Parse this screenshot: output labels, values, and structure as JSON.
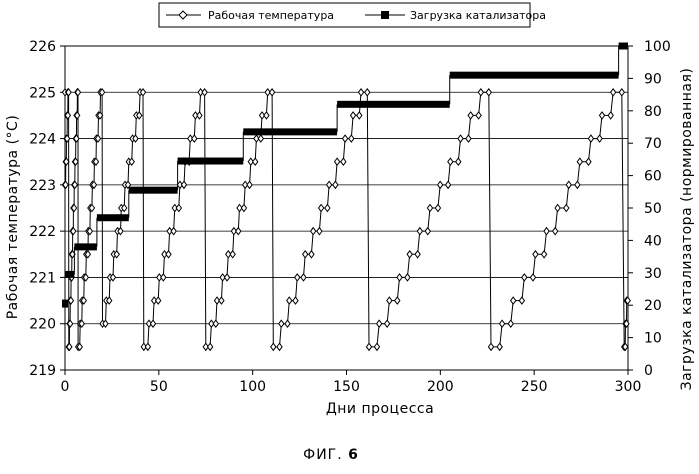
{
  "chart_data": {
    "type": "line",
    "x_label": "Дни процесса",
    "y_left_label": "Рабочая   температура   (°C)",
    "y_right_label": "Загрузка   катализатора   (нормированная)",
    "caption_prefix": "ФИГ. ",
    "caption_number": "6",
    "x_range": [
      0,
      300
    ],
    "y_left_range": [
      219,
      226
    ],
    "y_right_range": [
      0,
      100
    ],
    "x_ticks": [
      "0",
      "50",
      "100",
      "150",
      "200",
      "250",
      "300"
    ],
    "y_left_ticks": [
      "219",
      "220",
      "221",
      "222",
      "223",
      "224",
      "225",
      "226"
    ],
    "y_right_ticks": [
      "0",
      "10",
      "20",
      "30",
      "40",
      "50",
      "60",
      "70",
      "80",
      "90",
      "100"
    ],
    "grid": "horizontal",
    "legend_position": "top",
    "series": [
      {
        "name": "Рабочая температура",
        "axis": "left",
        "marker": "diamond",
        "cycles": [
          {
            "start": 0,
            "end": 2,
            "min": 223,
            "max": 225
          },
          {
            "start": 2,
            "end": 7,
            "min": 219.5,
            "max": 225
          },
          {
            "start": 7,
            "end": 20,
            "min": 219.5,
            "max": 225
          },
          {
            "start": 20,
            "end": 42,
            "min": 220,
            "max": 225
          },
          {
            "start": 42,
            "end": 75,
            "min": 219.5,
            "max": 225
          },
          {
            "start": 75,
            "end": 111,
            "min": 219.5,
            "max": 225
          },
          {
            "start": 111,
            "end": 162,
            "min": 219.5,
            "max": 225
          },
          {
            "start": 162,
            "end": 227,
            "min": 219.5,
            "max": 225
          },
          {
            "start": 227,
            "end": 298,
            "min": 219.5,
            "max": 225
          },
          {
            "start": 298,
            "end": 300,
            "min": 219.5,
            "max": 220.5
          }
        ]
      },
      {
        "name": "Загрузка катализатора",
        "axis": "right",
        "marker": "square",
        "steps": [
          {
            "x0": 0,
            "x1": 5,
            "y": 29.5
          },
          {
            "x0": 5,
            "x1": 17,
            "y": 38
          },
          {
            "x0": 17,
            "x1": 34,
            "y": 47
          },
          {
            "x0": 34,
            "x1": 60,
            "y": 55.5
          },
          {
            "x0": 60,
            "x1": 95,
            "y": 64.5
          },
          {
            "x0": 95,
            "x1": 145,
            "y": 73.5
          },
          {
            "x0": 145,
            "x1": 205,
            "y": 82
          },
          {
            "x0": 205,
            "x1": 295,
            "y": 91
          },
          {
            "x0": 295,
            "x1": 300,
            "y": 100
          }
        ],
        "start_value": 20.5
      }
    ]
  }
}
